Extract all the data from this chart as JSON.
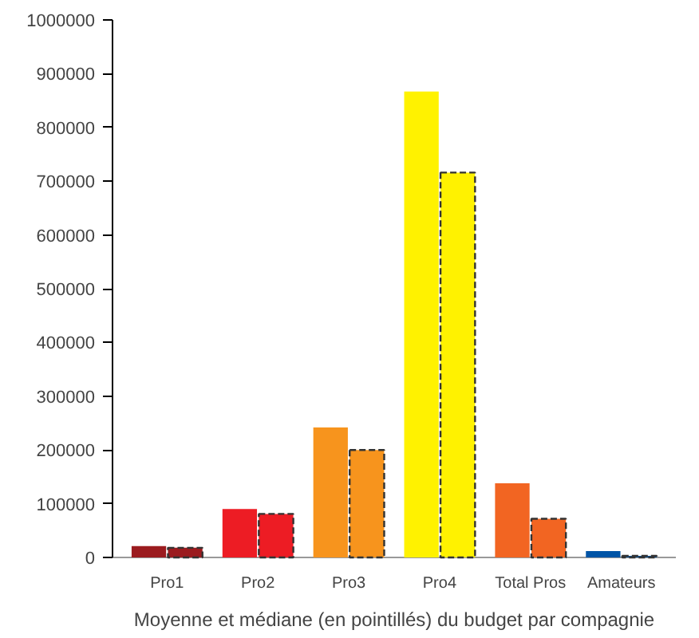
{
  "chart_data": {
    "type": "bar",
    "title": "Moyenne et médiane (en pointillés) du budget par compagnie",
    "categories": [
      "Pro1",
      "Pro2",
      "Pro3",
      "Pro4",
      "Total Pros",
      "Amateurs"
    ],
    "series": [
      {
        "colors": [
          "#9b1b1f",
          "#ed1c24",
          "#f7941d",
          "#fff200",
          "#f26522",
          "#0054a6"
        ],
        "values": [
          21000,
          90000,
          242000,
          867000,
          138000,
          12000
        ],
        "line_style": "solid"
      },
      {
        "colors": [
          "#9b1b1f",
          "#ed1c24",
          "#f7941d",
          "#fff200",
          "#f26522",
          "#0054a6"
        ],
        "values": [
          18000,
          81000,
          200000,
          716000,
          72000,
          3000
        ],
        "line_style": "dashed"
      }
    ],
    "ylim": [
      0,
      1000000
    ],
    "yticks": [
      0,
      100000,
      200000,
      300000,
      400000,
      500000,
      600000,
      700000,
      800000,
      900000,
      1000000
    ]
  }
}
